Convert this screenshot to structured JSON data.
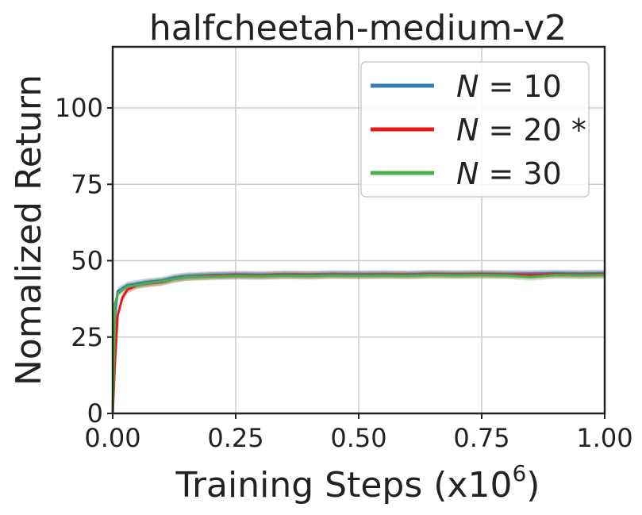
{
  "chart_data": {
    "type": "line",
    "title": "halfcheetah-medium-v2",
    "xlabel": "Training Steps (x10",
    "xlabel_exponent": "6",
    "xlabel_close": ")",
    "ylabel": "Nomalized Return",
    "xlim": [
      0.0,
      1.0
    ],
    "ylim": [
      0,
      120
    ],
    "xticks": [
      0.0,
      0.25,
      0.5,
      0.75,
      1.0
    ],
    "xtick_labels": [
      "0.00",
      "0.25",
      "0.50",
      "0.75",
      "1.00"
    ],
    "yticks": [
      0,
      25,
      50,
      75,
      100
    ],
    "ytick_labels": [
      "0",
      "25",
      "50",
      "75",
      "100"
    ],
    "grid": true,
    "legend_position": "top-right",
    "series": [
      {
        "name": "N = 10",
        "legend_prefix": "N",
        "legend_suffix": " = 10",
        "color": "#377eb8",
        "x": [
          0.0,
          0.005,
          0.01,
          0.02,
          0.03,
          0.05,
          0.07,
          0.1,
          0.125,
          0.15,
          0.2,
          0.25,
          0.3,
          0.35,
          0.4,
          0.45,
          0.5,
          0.55,
          0.6,
          0.65,
          0.7,
          0.75,
          0.8,
          0.85,
          0.9,
          0.95,
          1.0
        ],
        "y": [
          0,
          32,
          40,
          41,
          42,
          42.5,
          43,
          43.5,
          44.5,
          45,
          45.3,
          45.5,
          45.4,
          45.6,
          45.5,
          45.7,
          45.6,
          45.7,
          45.6,
          45.8,
          45.7,
          45.8,
          45.7,
          45.8,
          45.9,
          45.8,
          45.9
        ]
      },
      {
        "name": "N = 20 *",
        "legend_prefix": "N",
        "legend_suffix": " = 20 *",
        "color": "#e41a1c",
        "x": [
          0.0,
          0.005,
          0.01,
          0.02,
          0.03,
          0.05,
          0.07,
          0.1,
          0.125,
          0.15,
          0.2,
          0.25,
          0.3,
          0.35,
          0.4,
          0.45,
          0.5,
          0.55,
          0.6,
          0.65,
          0.7,
          0.75,
          0.8,
          0.85,
          0.9,
          0.95,
          1.0
        ],
        "y": [
          0,
          18,
          32,
          38,
          40.5,
          42,
          42.5,
          43,
          44,
          44.6,
          45,
          45.2,
          45.1,
          45.3,
          45.2,
          45.4,
          45.3,
          45.4,
          45.3,
          45.5,
          45.4,
          45.5,
          45.4,
          45.3,
          45.5,
          45.4,
          45.5
        ]
      },
      {
        "name": "N = 30",
        "legend_prefix": "N",
        "legend_suffix": " = 30",
        "color": "#4daf4a",
        "x": [
          0.0,
          0.005,
          0.01,
          0.02,
          0.03,
          0.05,
          0.07,
          0.1,
          0.125,
          0.15,
          0.2,
          0.25,
          0.3,
          0.35,
          0.4,
          0.45,
          0.5,
          0.55,
          0.6,
          0.65,
          0.7,
          0.75,
          0.8,
          0.85,
          0.9,
          0.95,
          1.0
        ],
        "y": [
          0,
          36,
          39,
          40.5,
          41.5,
          42,
          42.6,
          43.2,
          44,
          44.6,
          44.8,
          45,
          44.9,
          45.1,
          45,
          45.2,
          45.1,
          45.2,
          45.1,
          45.3,
          45.2,
          45.3,
          45.2,
          44.6,
          45.3,
          45.2,
          45.3
        ]
      }
    ]
  }
}
